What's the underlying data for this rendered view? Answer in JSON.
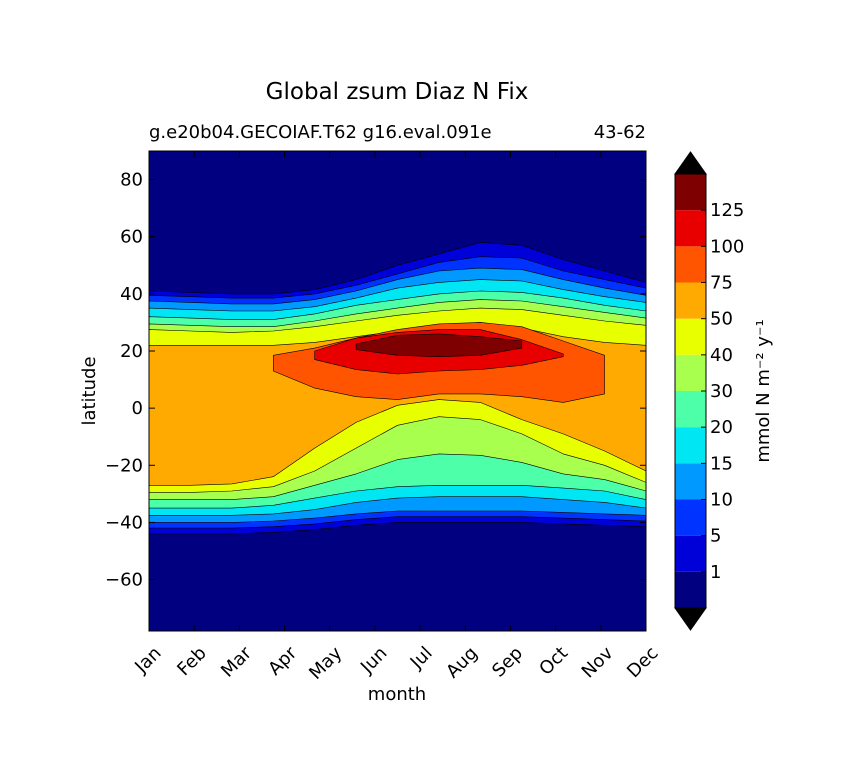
{
  "chart_data": {
    "type": "heatmap",
    "subtype": "filled-contour",
    "title": "Global zsum Diaz N Fix",
    "subtitle_left": "g.e20b04.GECOIAF.T62 g16.eval.091e",
    "subtitle_right": "43-62",
    "xlabel": "month",
    "ylabel": "latitude",
    "x_categories": [
      "Jan",
      "Feb",
      "Mar",
      "Apr",
      "May",
      "Jun",
      "Jul",
      "Aug",
      "Sep",
      "Oct",
      "Nov",
      "Dec"
    ],
    "xlim": [
      0,
      11
    ],
    "ylim": [
      -78,
      90
    ],
    "y_ticks": [
      80,
      60,
      40,
      20,
      0,
      -20,
      -40,
      -60
    ],
    "y_tick_labels": [
      "80",
      "60",
      "40",
      "20",
      "0",
      "−20",
      "−40",
      "−60"
    ],
    "colorbar": {
      "label": "mmol N m⁻² y⁻¹",
      "extend": "both",
      "levels": [
        1,
        5,
        10,
        15,
        20,
        30,
        40,
        50,
        75,
        100,
        125
      ],
      "tick_labels": [
        "1",
        "5",
        "10",
        "15",
        "20",
        "30",
        "40",
        "50",
        "75",
        "100",
        "125"
      ],
      "colors": [
        "#000080",
        "#0000d9",
        "#0033ff",
        "#0099ff",
        "#00e6f2",
        "#4dffa8",
        "#a8ff4d",
        "#e8ff00",
        "#ffaa00",
        "#ff5500",
        "#e80000",
        "#7f0000"
      ],
      "under_color": "#000000",
      "over_color": "#000000"
    },
    "contour_bands": [
      {
        "level": 1,
        "north_latitude": [
          41,
          40.5,
          40,
          40,
          41.5,
          45,
          50,
          54,
          58,
          57,
          52,
          48,
          44
        ],
        "south_latitude": [
          -44,
          -44,
          -44,
          -43.5,
          -42.5,
          -41,
          -40,
          -40,
          -40,
          -40,
          -40.5,
          -41,
          -41.5
        ]
      },
      {
        "level": 5,
        "north_latitude": [
          39.5,
          39,
          38.5,
          38.5,
          40,
          43,
          47,
          51,
          53,
          52.5,
          48,
          45,
          42
        ],
        "south_latitude": [
          -42,
          -42,
          -42,
          -41.5,
          -40.5,
          -39,
          -38,
          -38,
          -38,
          -38,
          -38.5,
          -39,
          -39.5
        ]
      },
      {
        "level": 10,
        "north_latitude": [
          37.5,
          37,
          36.5,
          36.5,
          38,
          41,
          45,
          48,
          49,
          48.5,
          45,
          42,
          39.5
        ],
        "south_latitude": [
          -40,
          -40,
          -40,
          -39.5,
          -38.5,
          -37,
          -36,
          -36,
          -36,
          -36,
          -36.5,
          -37,
          -37.5
        ]
      },
      {
        "level": 15,
        "north_latitude": [
          35,
          34.5,
          34,
          34,
          35.5,
          38.5,
          42,
          44,
          45,
          44.5,
          41.5,
          39,
          37
        ],
        "south_latitude": [
          -37.5,
          -37.5,
          -37.5,
          -37,
          -35.5,
          -33,
          -31.5,
          -31,
          -31,
          -31,
          -32,
          -33,
          -35
        ]
      },
      {
        "level": 20,
        "north_latitude": [
          32,
          31.5,
          31,
          31,
          33,
          36,
          38,
          40,
          41,
          40.5,
          38.5,
          36,
          34
        ],
        "south_latitude": [
          -35,
          -35,
          -35,
          -34,
          -31.5,
          -29,
          -27.5,
          -27,
          -27,
          -27,
          -28,
          -29,
          -32
        ]
      },
      {
        "level": 30,
        "north_latitude": [
          29.5,
          29,
          28.5,
          28.5,
          30.5,
          33,
          35,
          37,
          38,
          37.5,
          35.5,
          33.5,
          31.5
        ],
        "south_latitude": [
          -32,
          -32,
          -32,
          -31,
          -27,
          -23,
          -18,
          -16,
          -16.5,
          -19,
          -23,
          -25,
          -29
        ]
      },
      {
        "level": 40,
        "north_latitude": [
          27.5,
          27,
          26.5,
          27,
          28.5,
          30.5,
          32.5,
          34,
          35,
          34.5,
          32.5,
          30.5,
          29
        ],
        "south_latitude": [
          -29.5,
          -29.5,
          -29,
          -27.5,
          -22,
          -14,
          -6,
          -3,
          -4,
          -9,
          -16,
          -20,
          -26
        ]
      },
      {
        "level": 50,
        "north_latitude": [
          22,
          22,
          22,
          22,
          23,
          25,
          27,
          29,
          30,
          28,
          25,
          23,
          22
        ],
        "south_latitude": [
          -27,
          -27,
          -26.5,
          -24,
          -14,
          -5,
          1,
          3,
          2,
          -4,
          -9,
          -15,
          -22
        ]
      },
      {
        "level": 75,
        "north_latitude": [
          null,
          null,
          null,
          18.5,
          21,
          24.5,
          27.5,
          29.5,
          30,
          28.5,
          23.5,
          18.5,
          null
        ],
        "south_latitude": [
          null,
          null,
          null,
          13,
          7,
          4,
          3,
          5,
          5,
          4,
          2,
          5,
          null
        ]
      },
      {
        "level": 100,
        "north_latitude": [
          null,
          null,
          null,
          null,
          20,
          24.5,
          26.5,
          27.5,
          27.5,
          24,
          19,
          null,
          null
        ],
        "south_latitude": [
          null,
          null,
          null,
          null,
          17,
          13.5,
          12,
          13,
          13.5,
          15,
          18,
          null,
          null
        ]
      },
      {
        "level": 125,
        "north_latitude": [
          null,
          null,
          null,
          null,
          null,
          22.5,
          25.5,
          26,
          25,
          23.5,
          null,
          null,
          null
        ],
        "south_latitude": [
          null,
          null,
          null,
          null,
          null,
          20.5,
          18.5,
          18,
          18.5,
          21,
          null,
          null,
          null
        ]
      }
    ],
    "contour_x_months": [
      0,
      0.917,
      1.833,
      2.75,
      3.667,
      4.583,
      5.5,
      6.417,
      7.333,
      8.25,
      9.167,
      10.083,
      11
    ]
  }
}
